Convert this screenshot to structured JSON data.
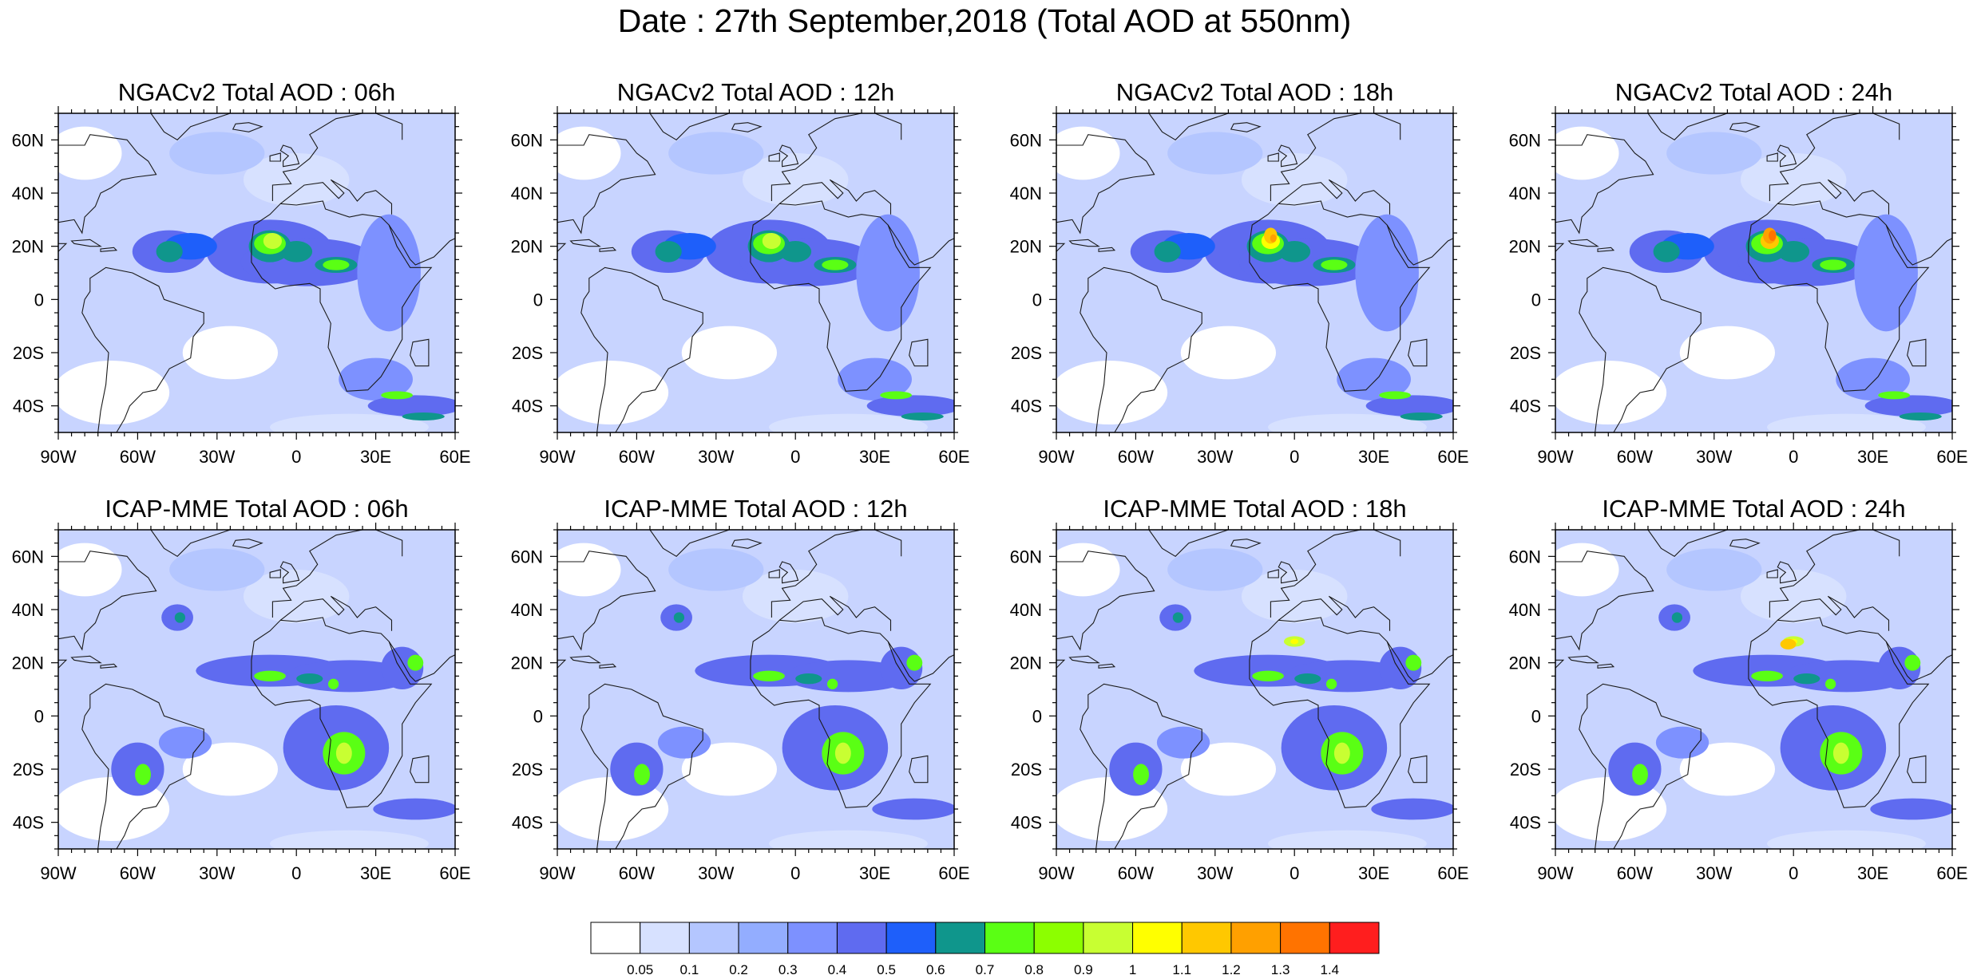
{
  "title": "Date : 27th September,2018 (Total AOD at 550nm)",
  "panels": [
    {
      "title": "NGACv2 Total AOD : 06h",
      "model": "NGACv2",
      "lead": "06h"
    },
    {
      "title": "NGACv2 Total AOD : 12h",
      "model": "NGACv2",
      "lead": "12h"
    },
    {
      "title": "NGACv2 Total AOD : 18h",
      "model": "NGACv2",
      "lead": "18h"
    },
    {
      "title": "NGACv2 Total AOD : 24h",
      "model": "NGACv2",
      "lead": "24h"
    },
    {
      "title": "ICAP-MME Total AOD : 06h",
      "model": "ICAP-MME",
      "lead": "06h"
    },
    {
      "title": "ICAP-MME Total AOD : 12h",
      "model": "ICAP-MME",
      "lead": "12h"
    },
    {
      "title": "ICAP-MME Total AOD : 18h",
      "model": "ICAP-MME",
      "lead": "18h"
    },
    {
      "title": "ICAP-MME Total AOD : 24h",
      "model": "ICAP-MME",
      "lead": "24h"
    }
  ],
  "map_extent": {
    "lon": [
      -90,
      60
    ],
    "lat": [
      -50,
      70
    ]
  },
  "lat_ticks": [
    {
      "value": 60,
      "label": "60N"
    },
    {
      "value": 40,
      "label": "40N"
    },
    {
      "value": 20,
      "label": "20N"
    },
    {
      "value": 0,
      "label": "0"
    },
    {
      "value": -20,
      "label": "20S"
    },
    {
      "value": -40,
      "label": "40S"
    }
  ],
  "lon_ticks": [
    {
      "value": -90,
      "label": "90W"
    },
    {
      "value": -60,
      "label": "60W"
    },
    {
      "value": -30,
      "label": "30W"
    },
    {
      "value": 0,
      "label": "0"
    },
    {
      "value": 30,
      "label": "30E"
    },
    {
      "value": 60,
      "label": "60E"
    }
  ],
  "colorbar": {
    "colors": [
      "#ffffff",
      "#d7e1ff",
      "#b4c6ff",
      "#93adff",
      "#7d91ff",
      "#5f6bf0",
      "#1e5ffa",
      "#0f968c",
      "#5aff14",
      "#8cff00",
      "#c8ff32",
      "#ffff00",
      "#ffc800",
      "#ffa000",
      "#ff7300",
      "#ff1e1e"
    ],
    "labels": [
      "0.05",
      "0.1",
      "0.2",
      "0.3",
      "0.4",
      "0.5",
      "0.6",
      "0.7",
      "0.8",
      "0.9",
      "1",
      "1.1",
      "1.2",
      "1.3",
      "1.4"
    ]
  },
  "colors": {
    "ocean_base": "#c8d4ff",
    "coast": "#1a1a1a",
    "frame": "#000000"
  }
}
